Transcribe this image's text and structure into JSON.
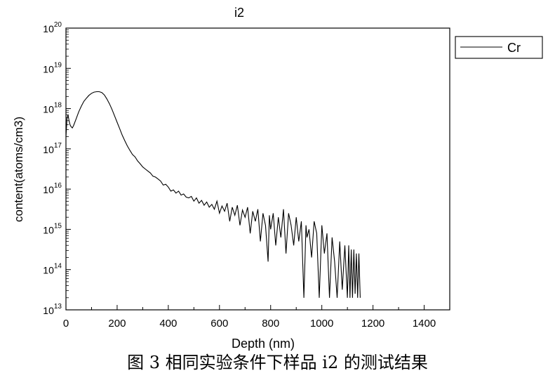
{
  "chart_data": {
    "type": "line",
    "title": "i2",
    "xlabel": "Depth (nm)",
    "ylabel": "content(atoms/cm3)",
    "xlim": [
      0,
      1500
    ],
    "ylim_log10": [
      13,
      20
    ],
    "yscale": "log",
    "x_ticks": [
      0,
      200,
      400,
      600,
      800,
      1000,
      1200,
      1400
    ],
    "y_tick_labels": [
      {
        "base": "10",
        "exp": "13"
      },
      {
        "base": "10",
        "exp": "14"
      },
      {
        "base": "10",
        "exp": "15"
      },
      {
        "base": "10",
        "exp": "16"
      },
      {
        "base": "10",
        "exp": "17"
      },
      {
        "base": "10",
        "exp": "18"
      },
      {
        "base": "10",
        "exp": "19"
      },
      {
        "base": "10",
        "exp": "20"
      }
    ],
    "legend_position": "outside-right-top",
    "grid": false,
    "series": [
      {
        "name": "Cr",
        "color": "#000000",
        "x": [
          0,
          4,
          8,
          12,
          16,
          20,
          25,
          30,
          40,
          50,
          60,
          70,
          80,
          90,
          100,
          110,
          120,
          130,
          140,
          150,
          160,
          170,
          180,
          190,
          200,
          210,
          220,
          230,
          240,
          250,
          260,
          270,
          280,
          290,
          300,
          310,
          320,
          330,
          340,
          350,
          360,
          370,
          380,
          390,
          400,
          410,
          420,
          430,
          440,
          450,
          460,
          470,
          480,
          490,
          500,
          510,
          520,
          530,
          540,
          550,
          560,
          570,
          580,
          590,
          600,
          610,
          620,
          630,
          640,
          650,
          660,
          670,
          680,
          690,
          700,
          710,
          720,
          730,
          740,
          750,
          760,
          770,
          780,
          790,
          795,
          800,
          810,
          820,
          830,
          840,
          850,
          860,
          870,
          880,
          890,
          900,
          910,
          920,
          930,
          938,
          942,
          950,
          960,
          970,
          980,
          990,
          1000,
          1010,
          1020,
          1030,
          1040,
          1050,
          1060,
          1070,
          1080,
          1090,
          1100,
          1105,
          1110,
          1115,
          1120,
          1125,
          1130,
          1135,
          1140,
          1145,
          1150
        ],
        "y_log10": [
          17.3,
          17.75,
          17.85,
          17.7,
          17.6,
          17.55,
          17.52,
          17.58,
          17.75,
          17.92,
          18.06,
          18.18,
          18.26,
          18.33,
          18.38,
          18.41,
          18.42,
          18.42,
          18.4,
          18.34,
          18.24,
          18.12,
          17.98,
          17.82,
          17.66,
          17.5,
          17.34,
          17.2,
          17.07,
          16.96,
          16.86,
          16.8,
          16.7,
          16.63,
          16.55,
          16.5,
          16.45,
          16.4,
          16.32,
          16.3,
          16.25,
          16.2,
          16.1,
          16.12,
          16.05,
          15.95,
          15.98,
          15.9,
          15.95,
          15.85,
          15.88,
          15.8,
          15.78,
          15.82,
          15.7,
          15.78,
          15.65,
          15.72,
          15.6,
          15.68,
          15.55,
          15.62,
          15.5,
          15.7,
          15.4,
          15.58,
          15.45,
          15.65,
          15.2,
          15.55,
          15.35,
          15.6,
          15.1,
          15.48,
          15.3,
          15.55,
          14.9,
          15.45,
          15.2,
          15.5,
          14.7,
          15.4,
          15.1,
          14.2,
          15.35,
          15.0,
          15.4,
          14.6,
          15.3,
          14.8,
          15.5,
          14.4,
          15.4,
          15.1,
          14.6,
          15.3,
          14.7,
          15.2,
          13.3,
          15.1,
          14.8,
          15.0,
          14.3,
          15.2,
          14.9,
          13.3,
          15.1,
          14.4,
          14.9,
          13.3,
          14.8,
          14.2,
          13.3,
          14.7,
          13.5,
          14.6,
          13.3,
          14.6,
          13.3,
          14.5,
          13.3,
          14.5,
          13.4,
          14.4,
          13.3,
          14.4,
          13.3
        ]
      }
    ]
  },
  "caption": "图 3 相同实验条件下样品 i2 的测试结果"
}
